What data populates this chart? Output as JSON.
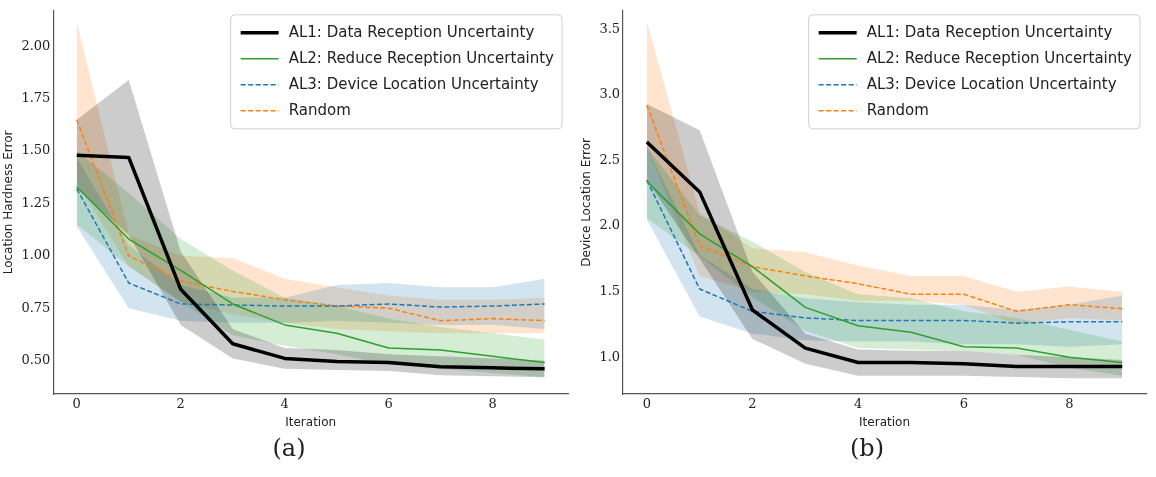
{
  "chart_data": [
    {
      "type": "line",
      "xlabel": "Iteration",
      "ylabel": "Location Hardness Error",
      "annotations": [
        "(a)"
      ],
      "legend": "top right",
      "grid": false,
      "x": [
        0,
        1,
        2,
        3,
        4,
        5,
        6,
        7,
        8,
        9
      ],
      "xlim": [
        -0.45,
        9.45
      ],
      "xticks": [
        0,
        2,
        4,
        6,
        8
      ],
      "ylim": [
        0.34,
        2.17
      ],
      "yticks": [
        {
          "value": 0.5,
          "label": "0.50"
        },
        {
          "value": 0.75,
          "label": "0.75"
        },
        {
          "value": 1,
          "label": "1.00"
        },
        {
          "value": 1.25,
          "label": "1.25"
        },
        {
          "value": 1.5,
          "label": "1.50"
        },
        {
          "value": 1.75,
          "label": "1.75"
        },
        {
          "value": 2,
          "label": "2.00"
        }
      ],
      "series": [
        {
          "name": "AL1: Data Reception Uncertainty",
          "color": "#000000",
          "line_style": "solid",
          "values": [
            1.48,
            1.47,
            0.84,
            0.58,
            0.51,
            0.495,
            0.49,
            0.47,
            0.465,
            0.46
          ],
          "upper": [
            1.65,
            1.84,
            1.02,
            0.65,
            0.56,
            0.55,
            0.53,
            0.52,
            0.51,
            0.5
          ],
          "lower": [
            1.32,
            1.1,
            0.67,
            0.51,
            0.46,
            0.455,
            0.45,
            0.43,
            0.425,
            0.42
          ]
        },
        {
          "name": "AL2: Reduce Reception Uncertainty",
          "color": "#2ca02c",
          "line_style": "solid",
          "values": [
            1.33,
            1.08,
            0.93,
            0.77,
            0.67,
            0.63,
            0.56,
            0.55,
            0.52,
            0.49
          ],
          "upper": [
            1.5,
            1.3,
            1.08,
            0.93,
            0.8,
            0.76,
            0.7,
            0.66,
            0.63,
            0.6
          ],
          "lower": [
            1.15,
            0.95,
            0.78,
            0.62,
            0.57,
            0.53,
            0.48,
            0.46,
            0.44,
            0.42
          ]
        },
        {
          "name": "AL3: Device Location Uncertainty",
          "color": "#1f77b4",
          "line_style": "dashed",
          "values": [
            1.32,
            0.87,
            0.77,
            0.765,
            0.76,
            0.76,
            0.77,
            0.755,
            0.76,
            0.77
          ],
          "upper": [
            1.47,
            1.05,
            0.86,
            0.8,
            0.8,
            0.86,
            0.87,
            0.85,
            0.85,
            0.89
          ],
          "lower": [
            1.14,
            0.75,
            0.69,
            0.68,
            0.68,
            0.69,
            0.68,
            0.67,
            0.67,
            0.65
          ]
        },
        {
          "name": "Random",
          "color": "#ff7f0e",
          "line_style": "dashed",
          "values": [
            1.65,
            1.0,
            0.88,
            0.83,
            0.79,
            0.76,
            0.75,
            0.69,
            0.7,
            0.69
          ],
          "upper": [
            2.12,
            1.1,
            1.0,
            0.99,
            0.89,
            0.85,
            0.81,
            0.79,
            0.79,
            0.8
          ],
          "lower": [
            1.35,
            0.95,
            0.78,
            0.72,
            0.68,
            0.65,
            0.64,
            0.63,
            0.63,
            0.63
          ]
        }
      ]
    },
    {
      "type": "line",
      "xlabel": "Iteration",
      "ylabel": "Device Location Error",
      "annotations": [
        "(b)"
      ],
      "legend": "top right",
      "grid": false,
      "x": [
        0,
        1,
        2,
        3,
        4,
        5,
        6,
        7,
        8,
        9
      ],
      "xlim": [
        -0.45,
        9.45
      ],
      "xticks": [
        0,
        2,
        4,
        6,
        8
      ],
      "ylim": [
        0.72,
        3.64
      ],
      "yticks": [
        {
          "value": 1,
          "label": "1.0"
        },
        {
          "value": 1.5,
          "label": "1.5"
        },
        {
          "value": 2,
          "label": "2.0"
        },
        {
          "value": 2.5,
          "label": "2.5"
        },
        {
          "value": 3,
          "label": "3.0"
        },
        {
          "value": 3.5,
          "label": "3.5"
        }
      ],
      "series": [
        {
          "name": "AL1: Data Reception Uncertainty",
          "color": "#000000",
          "line_style": "solid",
          "values": [
            2.64,
            2.26,
            1.36,
            1.07,
            0.96,
            0.96,
            0.95,
            0.93,
            0.93,
            0.93
          ],
          "upper": [
            2.93,
            2.73,
            1.65,
            1.18,
            1.06,
            1.05,
            1.05,
            1.02,
            1.0,
            0.98
          ],
          "lower": [
            2.35,
            1.75,
            1.14,
            0.95,
            0.86,
            0.86,
            0.86,
            0.85,
            0.84,
            0.84
          ]
        },
        {
          "name": "AL2: Reduce Reception Uncertainty",
          "color": "#2ca02c",
          "line_style": "solid",
          "values": [
            2.34,
            1.94,
            1.69,
            1.38,
            1.24,
            1.19,
            1.08,
            1.07,
            1.0,
            0.96
          ],
          "upper": [
            2.6,
            2.08,
            1.88,
            1.65,
            1.48,
            1.45,
            1.35,
            1.3,
            1.21,
            1.12
          ],
          "lower": [
            2.06,
            1.77,
            1.46,
            1.2,
            1.07,
            1.06,
            1.05,
            1.02,
            0.92,
            0.86
          ]
        },
        {
          "name": "AL3: Device Location Uncertainty",
          "color": "#1f77b4",
          "line_style": "dashed",
          "values": [
            2.35,
            1.52,
            1.35,
            1.3,
            1.28,
            1.28,
            1.28,
            1.26,
            1.27,
            1.27
          ],
          "upper": [
            2.6,
            1.78,
            1.52,
            1.45,
            1.42,
            1.4,
            1.4,
            1.36,
            1.4,
            1.47
          ],
          "lower": [
            2.05,
            1.31,
            1.18,
            1.13,
            1.12,
            1.12,
            1.1,
            1.1,
            1.08,
            1.1
          ]
        },
        {
          "name": "Random",
          "color": "#ff7f0e",
          "line_style": "dashed",
          "values": [
            2.92,
            1.85,
            1.69,
            1.62,
            1.56,
            1.48,
            1.48,
            1.35,
            1.4,
            1.37
          ],
          "upper": [
            3.56,
            2.1,
            1.83,
            1.8,
            1.7,
            1.62,
            1.62,
            1.5,
            1.54,
            1.5
          ],
          "lower": [
            2.6,
            1.62,
            1.5,
            1.48,
            1.43,
            1.43,
            1.4,
            1.25,
            1.3,
            1.28
          ]
        }
      ]
    }
  ]
}
